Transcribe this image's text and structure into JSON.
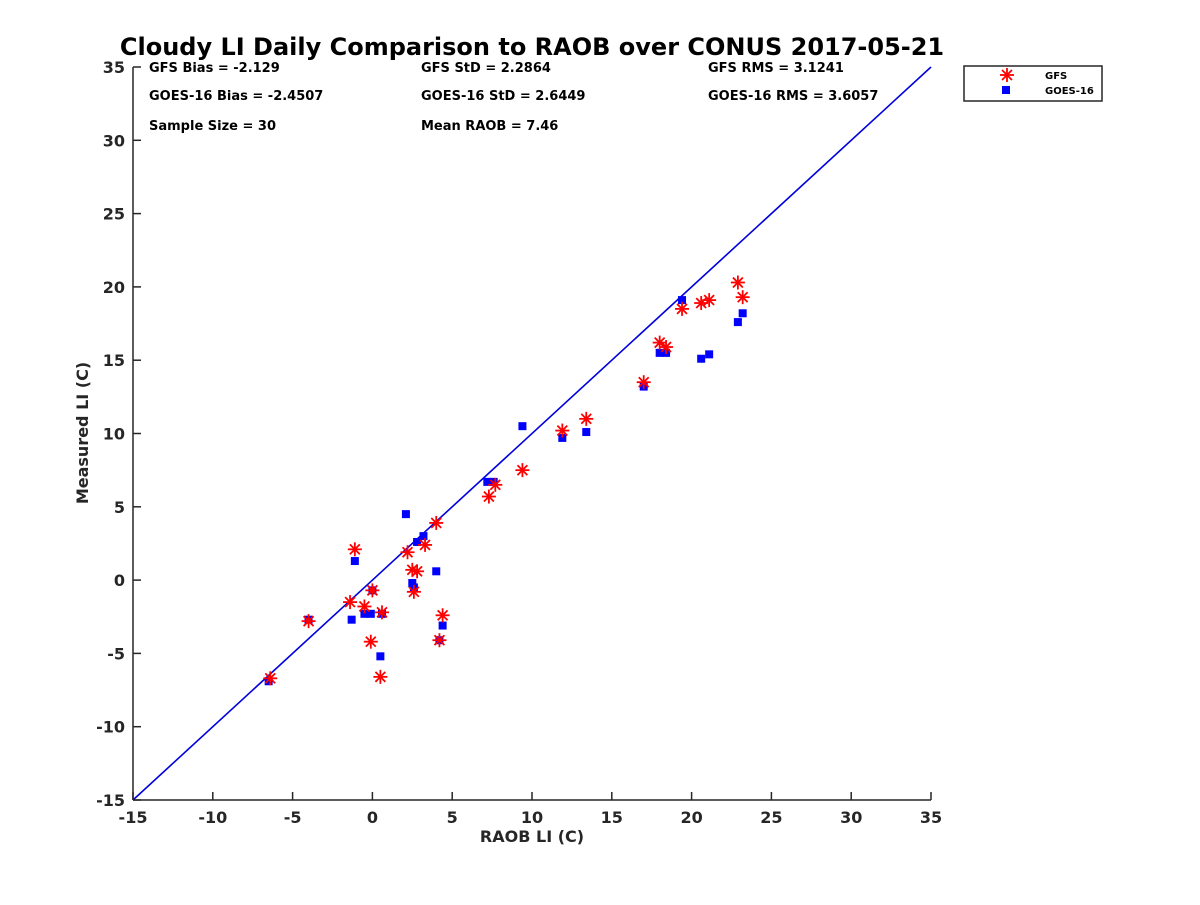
{
  "chart_data": {
    "type": "scatter",
    "title": "Cloudy LI Daily Comparison to RAOB over CONUS 2017-05-21",
    "xlabel": "RAOB LI (C)",
    "ylabel": "Measured LI (C)",
    "xlim": [
      -15,
      35
    ],
    "ylim": [
      -15,
      35
    ],
    "xticks": [
      "-15",
      "-10",
      "-5",
      "0",
      "5",
      "10",
      "15",
      "20",
      "25",
      "30",
      "35"
    ],
    "yticks": [
      "-15",
      "-10",
      "-5",
      "0",
      "5",
      "10",
      "15",
      "20",
      "25",
      "30",
      "35"
    ],
    "grid": false,
    "legend_position": "outside top-right",
    "reference_line": {
      "x": [
        -15,
        35
      ],
      "y": [
        -15,
        35
      ],
      "color": "#0000dd"
    },
    "stats": {
      "gfs_bias": "GFS Bias = -2.129",
      "gfs_std": "GFS StD = 2.2864",
      "gfs_rms": "GFS RMS = 3.1241",
      "goes_bias": "GOES-16 Bias = -2.4507",
      "goes_std": "GOES-16 StD = 2.6449",
      "goes_rms": "GOES-16 RMS = 3.6057",
      "sample_size": "Sample Size = 30",
      "mean_raob": "Mean RAOB = 7.46"
    },
    "series": [
      {
        "name": "GFS",
        "marker": "asterisk",
        "color": "#ff0000",
        "points": [
          [
            -6.4,
            -6.7
          ],
          [
            -4.0,
            -2.8
          ],
          [
            -1.4,
            -1.5
          ],
          [
            -1.1,
            2.1
          ],
          [
            -0.5,
            -1.8
          ],
          [
            -0.1,
            -4.2
          ],
          [
            0.0,
            -0.7
          ],
          [
            0.6,
            -2.2
          ],
          [
            0.5,
            -6.6
          ],
          [
            2.2,
            1.9
          ],
          [
            2.5,
            0.7
          ],
          [
            2.6,
            -0.8
          ],
          [
            2.8,
            0.6
          ],
          [
            3.3,
            2.4
          ],
          [
            4.0,
            3.9
          ],
          [
            4.2,
            -4.1
          ],
          [
            4.4,
            -2.4
          ],
          [
            7.3,
            5.7
          ],
          [
            7.7,
            6.5
          ],
          [
            9.4,
            7.5
          ],
          [
            11.9,
            10.2
          ],
          [
            13.4,
            11.0
          ],
          [
            17.0,
            13.5
          ],
          [
            18.0,
            16.2
          ],
          [
            18.4,
            15.9
          ],
          [
            19.4,
            18.5
          ],
          [
            20.6,
            18.9
          ],
          [
            21.1,
            19.1
          ],
          [
            22.9,
            20.3
          ],
          [
            23.2,
            19.3
          ]
        ]
      },
      {
        "name": "GOES-16",
        "marker": "square",
        "color": "#0000ff",
        "points": [
          [
            -6.5,
            -6.9
          ],
          [
            -4.0,
            -2.7
          ],
          [
            -1.3,
            -2.7
          ],
          [
            -1.1,
            1.3
          ],
          [
            -0.5,
            -2.3
          ],
          [
            -0.1,
            -2.3
          ],
          [
            0.0,
            -0.7
          ],
          [
            0.5,
            -5.2
          ],
          [
            0.6,
            -2.3
          ],
          [
            2.1,
            4.5
          ],
          [
            2.5,
            -0.2
          ],
          [
            2.6,
            -0.5
          ],
          [
            2.8,
            2.6
          ],
          [
            3.2,
            3.0
          ],
          [
            4.0,
            0.6
          ],
          [
            4.2,
            -4.1
          ],
          [
            4.4,
            -3.1
          ],
          [
            7.2,
            6.7
          ],
          [
            7.6,
            6.7
          ],
          [
            9.4,
            10.5
          ],
          [
            11.9,
            9.7
          ],
          [
            13.4,
            10.1
          ],
          [
            17.0,
            13.2
          ],
          [
            18.0,
            15.5
          ],
          [
            18.4,
            15.5
          ],
          [
            19.4,
            19.1
          ],
          [
            20.6,
            15.1
          ],
          [
            21.1,
            15.4
          ],
          [
            22.9,
            17.6
          ],
          [
            23.2,
            18.2
          ]
        ]
      }
    ]
  }
}
